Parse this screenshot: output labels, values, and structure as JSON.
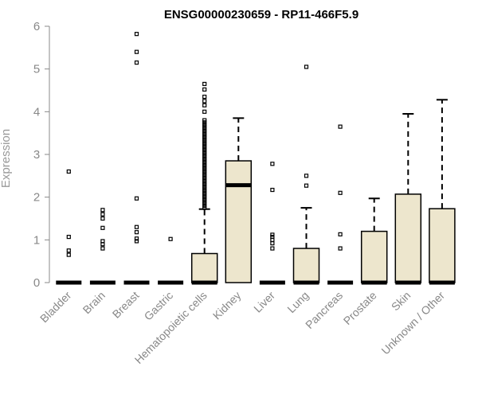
{
  "chart_data": {
    "type": "box",
    "title": "ENSG00000230659 - RP11-466F5.9",
    "ylabel": "Expression",
    "xlabel": "",
    "ylim": [
      0,
      6
    ],
    "yticks": [
      0,
      1,
      2,
      3,
      4,
      5,
      6
    ],
    "categories": [
      "Bladder",
      "Brain",
      "Breast",
      "Gastric",
      "Hematopoietic cells",
      "Kidney",
      "Liver",
      "Lung",
      "Pancreas",
      "Prostate",
      "Skin",
      "Unknown / Other"
    ],
    "boxes": [
      {
        "category": "Bladder",
        "min": 0,
        "q1": 0,
        "median": 0,
        "q3": 0,
        "max": 0,
        "outliers": [
          0.65,
          0.75,
          1.07,
          2.6
        ]
      },
      {
        "category": "Brain",
        "min": 0,
        "q1": 0,
        "median": 0,
        "q3": 0,
        "max": 0,
        "outliers": [
          0.8,
          0.9,
          0.97,
          1.28,
          1.5,
          1.6,
          1.7
        ]
      },
      {
        "category": "Breast",
        "min": 0,
        "q1": 0,
        "median": 0,
        "q3": 0,
        "max": 0,
        "outliers": [
          0.97,
          1.03,
          1.18,
          1.3,
          1.97,
          5.15,
          5.4,
          5.82
        ]
      },
      {
        "category": "Gastric",
        "min": 0,
        "q1": 0,
        "median": 0,
        "q3": 0,
        "max": 0,
        "outliers": [
          1.02
        ]
      },
      {
        "category": "Hematopoietic cells",
        "min": 0,
        "q1": 0,
        "median": 0,
        "q3": 0.68,
        "max": 1.72,
        "outliers": [
          1.75,
          1.8,
          1.85,
          1.9,
          1.95,
          2.0,
          2.05,
          2.1,
          2.15,
          2.2,
          2.25,
          2.3,
          2.35,
          2.4,
          2.45,
          2.5,
          2.55,
          2.6,
          2.65,
          2.7,
          2.75,
          2.8,
          2.85,
          2.9,
          2.95,
          3.0,
          3.05,
          3.1,
          3.15,
          3.2,
          3.25,
          3.3,
          3.35,
          3.4,
          3.45,
          3.5,
          3.55,
          3.6,
          3.65,
          3.7,
          3.75,
          3.8,
          4.0,
          4.15,
          4.25,
          4.35,
          4.52,
          4.65
        ]
      },
      {
        "category": "Kidney",
        "min": 0,
        "q1": 0,
        "median": 2.28,
        "q3": 2.85,
        "max": 3.85,
        "outliers": []
      },
      {
        "category": "Liver",
        "min": 0,
        "q1": 0,
        "median": 0,
        "q3": 0,
        "max": 0,
        "outliers": [
          0.8,
          0.92,
          1.0,
          1.07,
          1.12,
          2.17,
          2.78
        ]
      },
      {
        "category": "Lung",
        "min": 0,
        "q1": 0,
        "median": 0,
        "q3": 0.8,
        "max": 1.75,
        "outliers": [
          2.27,
          2.5,
          5.05
        ]
      },
      {
        "category": "Pancreas",
        "min": 0,
        "q1": 0,
        "median": 0,
        "q3": 0,
        "max": 0,
        "outliers": [
          0.8,
          1.13,
          2.1,
          3.65
        ]
      },
      {
        "category": "Prostate",
        "min": 0,
        "q1": 0,
        "median": 0,
        "q3": 1.2,
        "max": 1.97,
        "outliers": []
      },
      {
        "category": "Skin",
        "min": 0,
        "q1": 0,
        "median": 0,
        "q3": 2.07,
        "max": 3.95,
        "outliers": []
      },
      {
        "category": "Unknown / Other",
        "min": 0,
        "q1": 0,
        "median": 0,
        "q3": 1.73,
        "max": 4.28,
        "outliers": []
      }
    ],
    "box_fill": "#ede6cd",
    "box_stroke": "#000000",
    "axis_color": "#888888",
    "grid": false,
    "legend": "none"
  }
}
